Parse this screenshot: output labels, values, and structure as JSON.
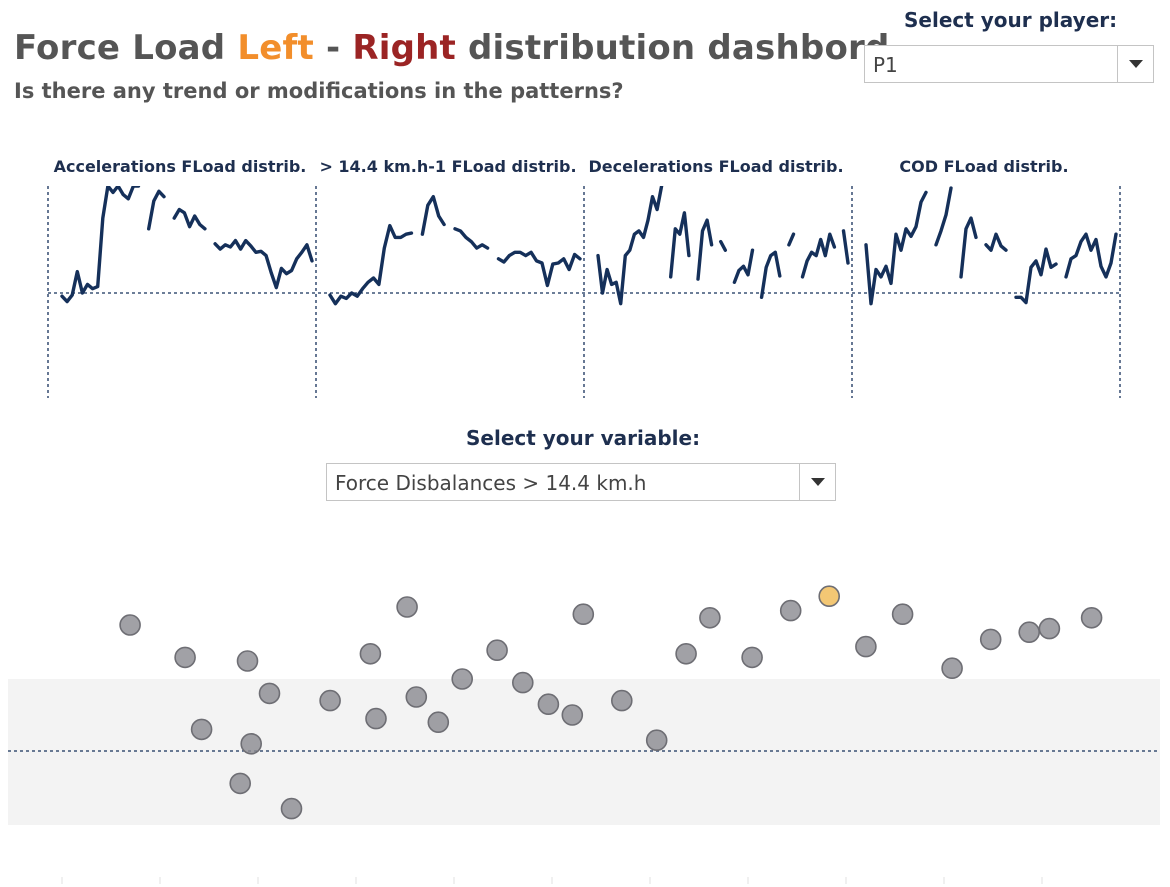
{
  "header": {
    "title_part1": "Force Load ",
    "title_left": "Left",
    "title_sep": " - ",
    "title_right": "Right",
    "title_part2": " distribution dashbord.",
    "subtitle": "Is there any trend or modifications in the patterns?"
  },
  "player_selector": {
    "label": "Select your player:",
    "value": "P1"
  },
  "variable_selector": {
    "label": "Select your variable:",
    "value": "Force Disbalances > 14.4 km.h"
  },
  "colors": {
    "title_gray": "#555555",
    "left_orange": "#f28e2b",
    "right_red": "#9b2424",
    "line_navy": "#15305a",
    "dot_gray": "#8c8c92",
    "dot_yellow": "#f0bb55",
    "dot_red": "#d95f6e",
    "band_gray": "#f3f3f3"
  },
  "chart_data": [
    {
      "type": "line",
      "panels": [
        {
          "title": "Accelerations FLoad distrib.",
          "segments": [
            [
              -3,
              -8,
              -2,
              20,
              0,
              8,
              4,
              6,
              70,
              100,
              94,
              100,
              92,
              88,
              100,
              100
            ],
            [
              60,
              86,
              95,
              90
            ],
            [
              70,
              78,
              75,
              62,
              72,
              64,
              60
            ],
            [
              46,
              41,
              45,
              43,
              49,
              41,
              49,
              44,
              38,
              39,
              35,
              19,
              5,
              23,
              18,
              21,
              32,
              38,
              45,
              30
            ]
          ]
        },
        {
          "title": "> 14.4 km.h-1  FLoad distrib.",
          "segments": [
            [
              -2,
              -10,
              -3,
              -5,
              0,
              -3,
              4,
              10,
              14,
              8,
              42,
              63,
              52,
              52,
              55,
              56
            ],
            [
              55,
              82,
              90,
              72,
              64
            ],
            [
              60,
              58,
              52,
              48,
              42,
              45,
              42
            ],
            [
              32,
              29,
              35,
              38,
              38,
              35,
              38,
              30,
              28,
              7,
              27,
              28,
              32,
              22,
              36,
              32
            ]
          ]
        },
        {
          "title": "Decelerations FLoad distrib.",
          "segments": [
            [
              35,
              0,
              22,
              8,
              10,
              -10,
              35,
              40,
              55,
              58,
              52,
              68,
              90,
              78,
              100
            ],
            [
              15,
              60,
              55,
              75,
              35
            ],
            [
              13,
              58,
              68,
              45
            ],
            [
              48,
              40
            ],
            [
              10,
              21,
              25,
              17,
              40
            ],
            [
              -4,
              24,
              35,
              38,
              16
            ],
            [
              45,
              55
            ],
            [
              15,
              30,
              38,
              35,
              50,
              35,
              55,
              43
            ],
            [
              58,
              28
            ]
          ]
        },
        {
          "title": "COD FLoad distrib.",
          "segments": [
            [
              45,
              -10,
              22,
              15,
              25,
              9,
              55,
              40,
              60,
              53,
              62,
              85,
              94
            ],
            [
              45,
              58,
              73,
              98
            ],
            [
              15,
              60,
              70,
              52
            ],
            [
              45,
              40,
              55,
              44,
              40
            ],
            [
              -4,
              -4,
              -9,
              24,
              30,
              17,
              41,
              24,
              27
            ],
            [
              15,
              32,
              35,
              48,
              55,
              40,
              50,
              25,
              15,
              28,
              55
            ]
          ]
        }
      ]
    },
    {
      "type": "scatter",
      "series": [
        {
          "values": [
            [
              3.6,
              0.35
            ],
            [
              6.6,
              0.26
            ],
            [
              7.5,
              0.06
            ],
            [
              9.6,
              -0.09
            ],
            [
              10.2,
              0.02
            ],
            [
              10.0,
              0.25
            ],
            [
              11.2,
              0.16
            ],
            [
              12.4,
              -0.16
            ],
            [
              14.5,
              0.14
            ],
            [
              16.7,
              0.27
            ],
            [
              17.0,
              0.09
            ],
            [
              18.7,
              0.4
            ],
            [
              19.2,
              0.15
            ],
            [
              20.4,
              0.08
            ],
            [
              21.7,
              0.2
            ],
            [
              23.6,
              0.28
            ],
            [
              25.0,
              0.19
            ],
            [
              26.4,
              0.13
            ],
            [
              28.3,
              0.38
            ],
            [
              27.7,
              0.1
            ],
            [
              30.4,
              0.14
            ],
            [
              32.3,
              0.03
            ],
            [
              33.9,
              0.27
            ],
            [
              35.2,
              0.37
            ],
            [
              37.5,
              0.26
            ],
            [
              39.6,
              0.39
            ],
            [
              41.7,
              0.43
            ],
            [
              43.7,
              0.29
            ],
            [
              45.7,
              0.38
            ],
            [
              48.4,
              0.23
            ],
            [
              50.5,
              0.31
            ],
            [
              52.6,
              0.33
            ],
            [
              53.7,
              0.34
            ],
            [
              56.0,
              0.37
            ]
          ]
        }
      ]
    }
  ]
}
